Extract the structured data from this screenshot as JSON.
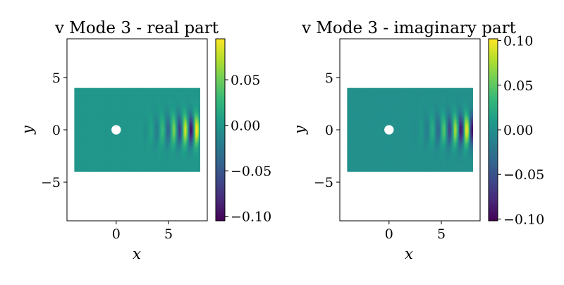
{
  "chart_data": [
    {
      "type": "heatmap",
      "title": "v Mode 3 - real part",
      "xlabel": "x",
      "ylabel": "y",
      "xlim": [
        -4.7,
        8.7
      ],
      "ylim": [
        -8.7,
        8.7
      ],
      "xticks": [
        {
          "value": 0,
          "label": "0"
        },
        {
          "value": 5,
          "label": "5"
        }
      ],
      "yticks": [
        {
          "value": 5,
          "label": "5"
        },
        {
          "value": 0,
          "label": "0"
        },
        {
          "value": -5,
          "label": "−5"
        }
      ],
      "domain": {
        "x": [
          -4,
          8
        ],
        "y": [
          -4,
          4
        ]
      },
      "obstacle": {
        "center": [
          0,
          0
        ],
        "radius": 0.45
      },
      "colorbar": {
        "range": [
          -0.105,
          0.095
        ],
        "ticks": [
          {
            "value": 0.05,
            "label": "0.05"
          },
          {
            "value": 0.0,
            "label": "0.00"
          },
          {
            "value": -0.05,
            "label": "−0.05"
          },
          {
            "value": -0.1,
            "label": "−0.10"
          }
        ]
      },
      "wave": {
        "phase_deg": 0,
        "x_start": 2.0,
        "x_peak": 7.2,
        "amplitude": 0.1,
        "wavelength": 1.1,
        "y_decay": 1.4
      },
      "grid": false,
      "legend": "none"
    },
    {
      "type": "heatmap",
      "title": "v Mode 3 - imaginary part",
      "xlabel": "x",
      "ylabel": "y",
      "xlim": [
        -4.7,
        8.7
      ],
      "ylim": [
        -8.7,
        8.7
      ],
      "xticks": [
        {
          "value": 0,
          "label": "0"
        },
        {
          "value": 5,
          "label": "5"
        }
      ],
      "yticks": [
        {
          "value": 5,
          "label": "5"
        },
        {
          "value": 0,
          "label": "0"
        },
        {
          "value": -5,
          "label": "−5"
        }
      ],
      "domain": {
        "x": [
          -4,
          8
        ],
        "y": [
          -4,
          4
        ]
      },
      "obstacle": {
        "center": [
          0,
          0
        ],
        "radius": 0.45
      },
      "colorbar": {
        "range": [
          -0.102,
          0.102
        ],
        "ticks": [
          {
            "value": 0.1,
            "label": "0.10"
          },
          {
            "value": 0.05,
            "label": "0.05"
          },
          {
            "value": 0.0,
            "label": "0.00"
          },
          {
            "value": -0.05,
            "label": "−0.05"
          },
          {
            "value": -0.1,
            "label": "−0.10"
          }
        ]
      },
      "wave": {
        "phase_deg": 90,
        "x_start": 2.0,
        "x_peak": 7.2,
        "amplitude": 0.1,
        "wavelength": 1.1,
        "y_decay": 1.4
      },
      "grid": false,
      "legend": "none"
    }
  ],
  "colormap": {
    "name": "viridis",
    "stops": [
      "#440154",
      "#482878",
      "#3e4989",
      "#31688e",
      "#26828e",
      "#1f9e89",
      "#35b779",
      "#6ece58",
      "#b5de2b",
      "#fde725"
    ]
  }
}
